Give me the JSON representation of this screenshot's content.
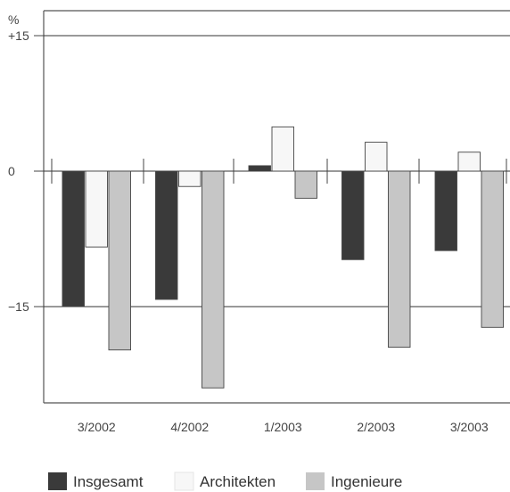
{
  "chart_data": {
    "type": "bar",
    "title": "",
    "xlabel": "",
    "ylabel": "%",
    "ylim": [
      -26,
      18.5
    ],
    "yticks": [
      {
        "value": 15,
        "label": "+15"
      },
      {
        "value": 0,
        "label": "0"
      },
      {
        "value": -15,
        "label": "−15"
      }
    ],
    "categories": [
      "3/2002",
      "4/2002",
      "1/2003",
      "2/2003",
      "3/2003"
    ],
    "series": [
      {
        "name": "Insgesamt",
        "color": "#3a3a3a",
        "values": [
          -15,
          -14.2,
          0.6,
          -9.8,
          -8.8
        ]
      },
      {
        "name": "Architekten",
        "color": "#f7f7f7",
        "values": [
          -8.4,
          -1.7,
          4.9,
          3.2,
          2.1
        ]
      },
      {
        "name": "Ingenieure",
        "color": "#c6c6c6",
        "values": [
          -19.8,
          -24.0,
          -3.0,
          -19.5,
          -17.3
        ]
      }
    ],
    "reference_lines": [
      15,
      -15
    ],
    "grid": false,
    "legend_position": "bottom-left"
  }
}
